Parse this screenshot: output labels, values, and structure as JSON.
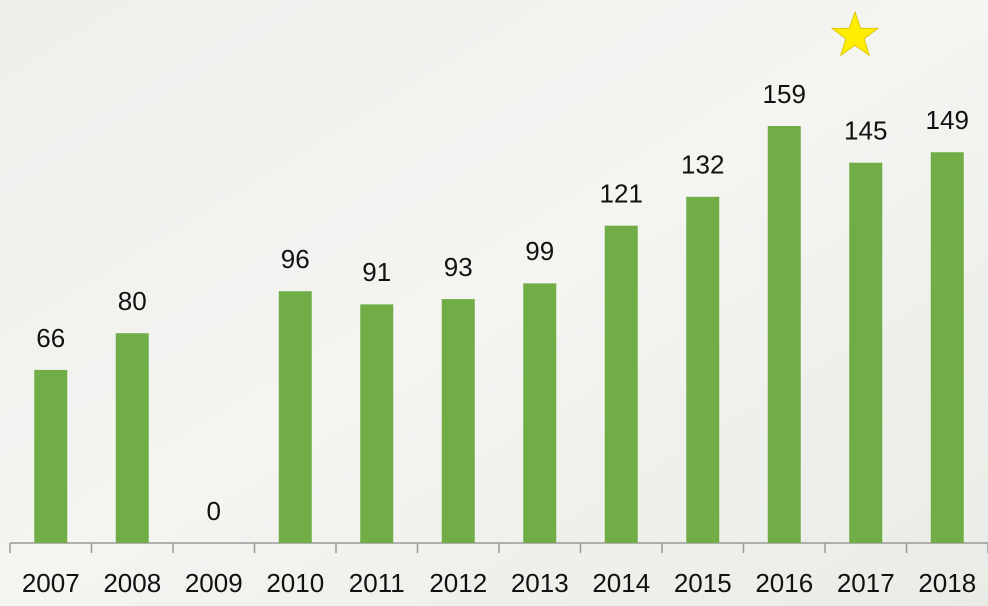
{
  "chart_data": {
    "type": "bar",
    "categories": [
      "2007",
      "2008",
      "2009",
      "2010",
      "2011",
      "2012",
      "2013",
      "2014",
      "2015",
      "2016",
      "2017",
      "2018"
    ],
    "values": [
      66,
      80,
      0,
      96,
      91,
      93,
      99,
      121,
      132,
      159,
      145,
      149
    ],
    "color": "#70ad47"
  }
}
